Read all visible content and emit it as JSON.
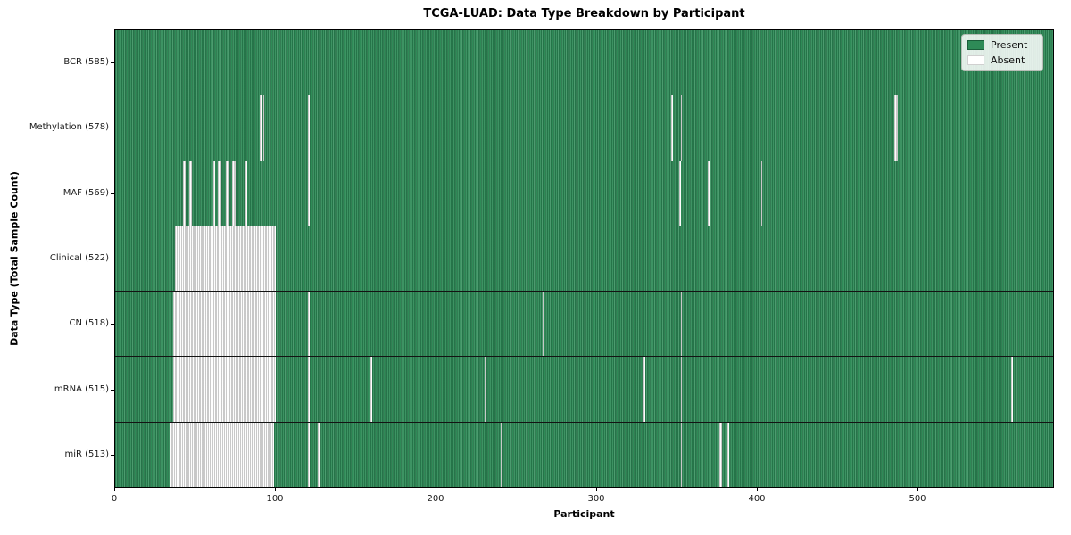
{
  "figure": {
    "title": "TCGA-LUAD: Data Type Breakdown by Participant",
    "xlabel": "Participant",
    "ylabel": "Data Type (Total Sample Count)"
  },
  "legend": {
    "items": [
      {
        "label": "Present",
        "color": "#2e8b57",
        "edge": "#1b5e3a"
      },
      {
        "label": "Absent",
        "color": "#ffffff",
        "edge": "#d0d0d0"
      }
    ]
  },
  "colors": {
    "present_fill": "#2e8b57",
    "present_stripe_dark": "#1e6240",
    "absent_fill": "#ffffff",
    "absent_stripe": "#bdbdbd",
    "separator": "#131313",
    "spine": "#000000"
  },
  "chart_data": {
    "type": "heatmap",
    "title": "TCGA-LUAD: Data Type Breakdown by Participant",
    "xlabel": "Participant",
    "ylabel": "Data Type (Total Sample Count)",
    "x_range": [
      0,
      585
    ],
    "x_ticks": [
      0,
      100,
      200,
      300,
      400,
      500
    ],
    "grid": false,
    "legend": [
      "Present",
      "Absent"
    ],
    "legend_position": "upper right",
    "value_encoding": {
      "present": "green cell",
      "absent": "white cell"
    },
    "rows": [
      {
        "label": "BCR (585)",
        "data_type": "BCR",
        "total_samples": 585,
        "absent_participant_ranges": []
      },
      {
        "label": "Methylation (578)",
        "data_type": "Methylation",
        "total_samples": 578,
        "absent_participant_ranges": [
          [
            90,
            90
          ],
          [
            92,
            92
          ],
          [
            120,
            120
          ],
          [
            346,
            346
          ],
          [
            352,
            352
          ],
          [
            485,
            486
          ]
        ]
      },
      {
        "label": "MAF (569)",
        "data_type": "MAF",
        "total_samples": 569,
        "absent_participant_ranges": [
          [
            42,
            43
          ],
          [
            46,
            47
          ],
          [
            61,
            61
          ],
          [
            64,
            65
          ],
          [
            69,
            70
          ],
          [
            73,
            74
          ],
          [
            81,
            81
          ],
          [
            120,
            120
          ],
          [
            351,
            351
          ],
          [
            369,
            369
          ],
          [
            402,
            402
          ]
        ]
      },
      {
        "label": "Clinical (522)",
        "data_type": "Clinical",
        "total_samples": 522,
        "absent_participant_ranges": [
          [
            37,
            99
          ]
        ]
      },
      {
        "label": "CN (518)",
        "data_type": "CN",
        "total_samples": 518,
        "absent_participant_ranges": [
          [
            36,
            99
          ],
          [
            120,
            120
          ],
          [
            266,
            266
          ],
          [
            352,
            352
          ]
        ]
      },
      {
        "label": "mRNA (515)",
        "data_type": "mRNA",
        "total_samples": 515,
        "absent_participant_ranges": [
          [
            36,
            99
          ],
          [
            120,
            120
          ],
          [
            159,
            159
          ],
          [
            230,
            230
          ],
          [
            329,
            329
          ],
          [
            352,
            352
          ],
          [
            558,
            558
          ]
        ]
      },
      {
        "label": "miR (513)",
        "data_type": "miR",
        "total_samples": 513,
        "absent_participant_ranges": [
          [
            34,
            98
          ],
          [
            120,
            120
          ],
          [
            126,
            126
          ],
          [
            240,
            240
          ],
          [
            352,
            352
          ],
          [
            376,
            377
          ],
          [
            381,
            381
          ]
        ]
      }
    ]
  }
}
